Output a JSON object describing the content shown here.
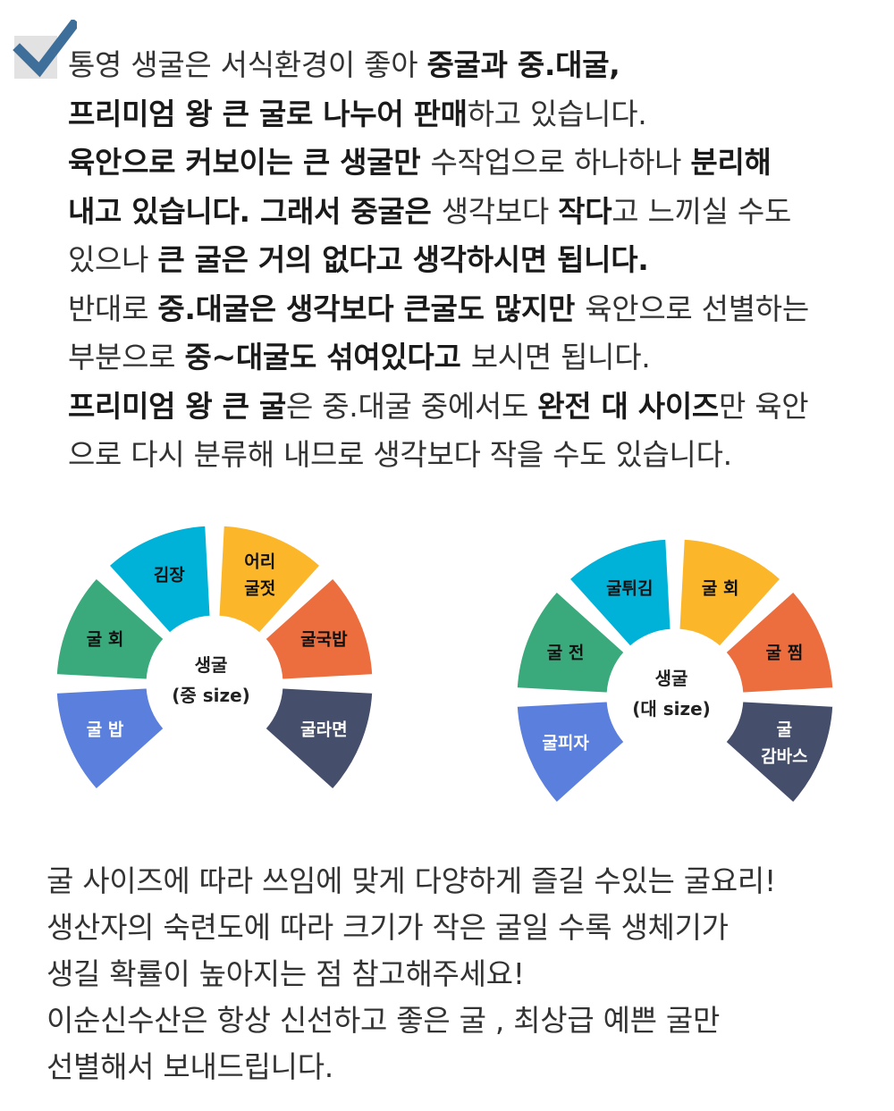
{
  "intro": {
    "icon": "checkbox-checked-icon",
    "lines": [
      [
        {
          "t": "통영 생굴은 서식환경이 좋아 ",
          "b": false
        },
        {
          "t": "중굴과 중.대굴,",
          "b": true
        }
      ],
      [
        {
          "t": "프리미엄 왕 큰 굴로 나누어 판매",
          "b": true
        },
        {
          "t": "하고 있습니다.",
          "b": false
        }
      ],
      [
        {
          "t": "육안으로 커보이는 큰 생굴만 ",
          "b": true
        },
        {
          "t": "수작업으로 하나하나 ",
          "b": false
        },
        {
          "t": "분리해",
          "b": true
        }
      ],
      [
        {
          "t": "내고 있습니다. 그래서 중굴은 ",
          "b": true
        },
        {
          "t": "생각보다 ",
          "b": false
        },
        {
          "t": "작다",
          "b": true
        },
        {
          "t": "고 느끼실 수도",
          "b": false
        }
      ],
      [
        {
          "t": "있으나 ",
          "b": false
        },
        {
          "t": "큰 굴은 거의 없다고 생각하시면 됩니다.",
          "b": true
        }
      ],
      [
        {
          "t": "반대로 ",
          "b": false
        },
        {
          "t": "중.대굴은 생각보다 큰굴도 많지만 ",
          "b": true
        },
        {
          "t": "육안으로 선별하는",
          "b": false
        }
      ],
      [
        {
          "t": "부분으로 ",
          "b": false
        },
        {
          "t": "중~대굴도 섞여있다고 ",
          "b": true
        },
        {
          "t": "보시면 됩니다.",
          "b": false
        }
      ],
      [
        {
          "t": "프리미엄 왕 큰 굴",
          "b": true
        },
        {
          "t": "은 중.대굴 중에서도 ",
          "b": false
        },
        {
          "t": "완전 대 사이즈",
          "b": true
        },
        {
          "t": "만 육안",
          "b": false
        }
      ],
      [
        {
          "t": "으로 다시 분류해 내므로 생각보다 작을 수도 있습니다.",
          "b": false
        }
      ]
    ]
  },
  "fans": [
    {
      "center": [
        "생굴",
        "(중 size)"
      ],
      "segments": [
        {
          "label": [
            "굴  밥"
          ],
          "color": "#5b7fdc",
          "text": "#ffffff"
        },
        {
          "label": [
            "굴 회"
          ],
          "color": "#3aaa7c",
          "text": "#111111"
        },
        {
          "label": [
            "김장"
          ],
          "color": "#00b1d8",
          "text": "#111111"
        },
        {
          "label": [
            "어리",
            "굴젓"
          ],
          "color": "#fbb62a",
          "text": "#111111"
        },
        {
          "label": [
            "굴국밥"
          ],
          "color": "#ec6d3e",
          "text": "#111111"
        },
        {
          "label": [
            "굴라면"
          ],
          "color": "#454e6a",
          "text": "#ffffff"
        }
      ]
    },
    {
      "center": [
        "생굴",
        "(대 size)"
      ],
      "segments": [
        {
          "label": [
            "굴피자"
          ],
          "color": "#5b7fdc",
          "text": "#ffffff"
        },
        {
          "label": [
            "굴 전"
          ],
          "color": "#3aaa7c",
          "text": "#111111"
        },
        {
          "label": [
            "굴튀김"
          ],
          "color": "#00b1d8",
          "text": "#111111"
        },
        {
          "label": [
            "굴 회"
          ],
          "color": "#fbb62a",
          "text": "#111111"
        },
        {
          "label": [
            "굴 찜"
          ],
          "color": "#ec6d3e",
          "text": "#111111"
        },
        {
          "label": [
            "굴",
            "감바스"
          ],
          "color": "#454e6a",
          "text": "#ffffff"
        }
      ]
    }
  ],
  "outro": {
    "lines": [
      " 굴 사이즈에 따라 쓰임에 맞게 다양하게 즐길 수있는 굴요리!",
      " 생산자의 숙련도에 따라 크기가 작은 굴일 수록 생체기가",
      "생길 확률이 높아지는 점 참고해주세요!",
      "이순신수산은 항상 신선하고 좋은 굴 , 최상급 예쁜 굴만",
      "선별해서 보내드립니다."
    ]
  }
}
